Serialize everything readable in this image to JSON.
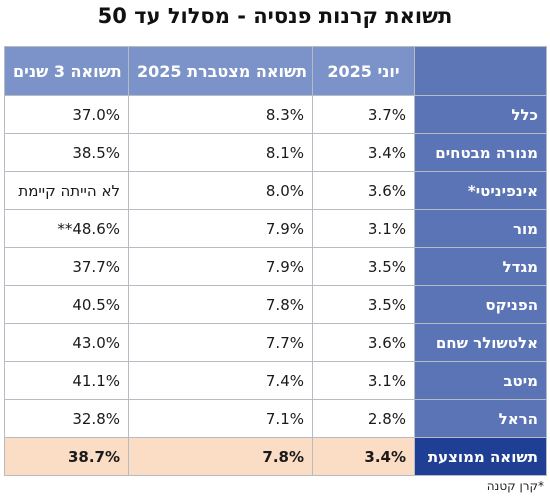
{
  "title": "תשואת קרנות פנסיה - מסלול עד 50",
  "headers": {
    "three_years": "תשואה 3 שנים",
    "cumulative_2025": "תשואה מצטברת 2025",
    "june_2025": "יוני 2025",
    "name": ""
  },
  "rows": [
    {
      "name": "כלל",
      "three_years": "37.0%",
      "cumulative_2025": "8.3%",
      "june_2025": "3.7%"
    },
    {
      "name": "מנורה מבטחים",
      "three_years": "38.5%",
      "cumulative_2025": "8.1%",
      "june_2025": "3.4%"
    },
    {
      "name": "אינפיניטי*",
      "three_years": "לא הייתה קיימת",
      "cumulative_2025": "8.0%",
      "june_2025": "3.6%"
    },
    {
      "name": "מור",
      "three_years": "48.6%**",
      "cumulative_2025": "7.9%",
      "june_2025": "3.1%"
    },
    {
      "name": "מגדל",
      "three_years": "37.7%",
      "cumulative_2025": "7.9%",
      "june_2025": "3.5%"
    },
    {
      "name": "הפניקס",
      "three_years": "40.5%",
      "cumulative_2025": "7.8%",
      "june_2025": "3.5%"
    },
    {
      "name": "אלטשולר שחם",
      "three_years": "43.0%",
      "cumulative_2025": "7.7%",
      "june_2025": "3.6%"
    },
    {
      "name": "מיטב",
      "three_years": "41.1%",
      "cumulative_2025": "7.4%",
      "june_2025": "3.1%"
    },
    {
      "name": "הראל",
      "three_years": "32.8%",
      "cumulative_2025": "7.1%",
      "june_2025": "2.8%"
    }
  ],
  "average": {
    "name": "תשואה ממוצעת",
    "three_years": "38.7%",
    "cumulative_2025": "7.8%",
    "june_2025": "3.4%"
  },
  "footnote": "*קרן קטנה",
  "colors": {
    "header_bg": "#7c93c9",
    "name_col_bg": "#5a74b6",
    "average_name_bg": "#1f3f95",
    "average_row_bg": "#fbdcc4"
  }
}
